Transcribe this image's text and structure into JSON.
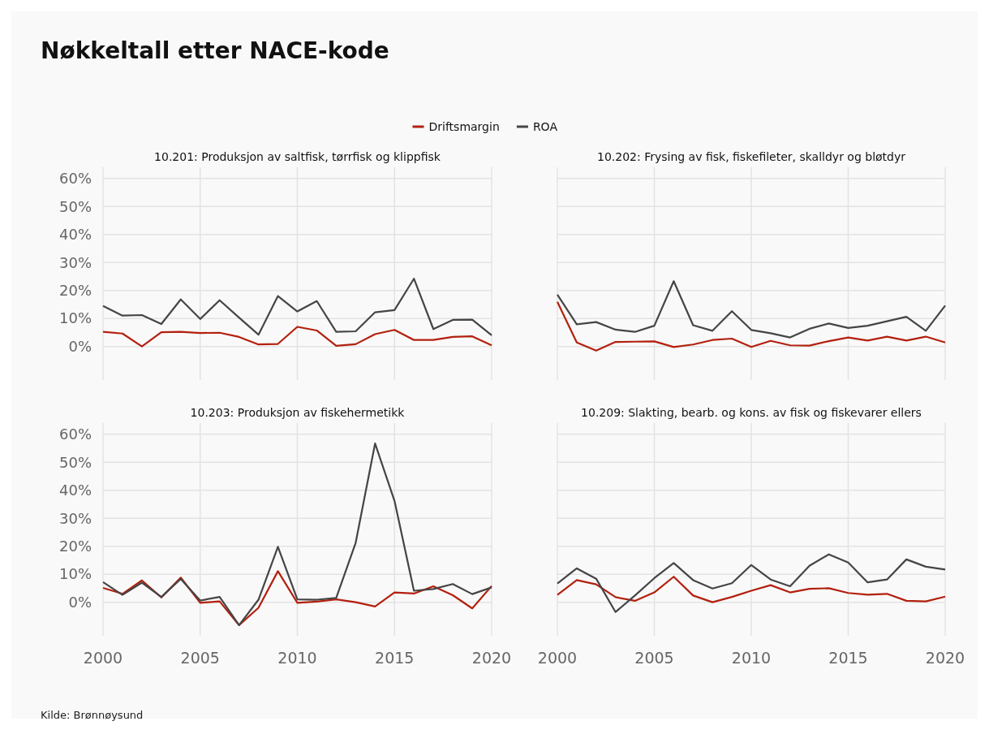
{
  "chart_data": [
    {
      "type": "line",
      "title": "Nøkkeltall etter NACE-kode",
      "subtitle": "10.201: Produksjon av saltfisk, tørrfisk og klippfisk",
      "x": [
        2000,
        2001,
        2002,
        2003,
        2004,
        2005,
        2006,
        2007,
        2008,
        2009,
        2010,
        2011,
        2012,
        2013,
        2014,
        2015,
        2016,
        2017,
        2018,
        2019,
        2020
      ],
      "xlim": [
        2000,
        2020
      ],
      "xticks": [
        {
          "value": 2000,
          "label": null
        },
        {
          "value": 2005,
          "label": null
        },
        {
          "value": 2010,
          "label": null
        },
        {
          "value": 2015,
          "label": null
        },
        {
          "value": 2020,
          "label": null
        }
      ],
      "ylim": [
        -12,
        64
      ],
      "yticks": [
        {
          "value": 0,
          "label": "0%"
        },
        {
          "value": 10,
          "label": "10%"
        },
        {
          "value": 20,
          "label": "20%"
        },
        {
          "value": 30,
          "label": "30%"
        },
        {
          "value": 40,
          "label": "40%"
        },
        {
          "value": 50,
          "label": "50%"
        },
        {
          "value": 60,
          "label": "60%"
        }
      ],
      "grid": true,
      "legend": "top",
      "tick_labels": "y",
      "series": [
        {
          "name": "Driftsmargin",
          "color": "#b3200e",
          "values": [
            5.2,
            4.6,
            0,
            5.1,
            5.2,
            4.8,
            4.9,
            3.4,
            0.7,
            0.9,
            7.0,
            5.7,
            0.2,
            0.8,
            4.4,
            5.9,
            2.3,
            2.3,
            3.4,
            3.6,
            0.4
          ]
        },
        {
          "name": "ROA",
          "color": "#454545",
          "values": [
            14.5,
            11,
            11.2,
            8,
            16.8,
            9.8,
            16.5,
            10.3,
            4.2,
            18,
            12.5,
            16.2,
            5.2,
            5.4,
            12.2,
            13,
            24.2,
            6.2,
            9.5,
            9.6,
            4
          ]
        }
      ]
    },
    {
      "type": "line",
      "subtitle": "10.202: Frysing av fisk, fiskefileter, skalldyr og bløtdyr",
      "x": [
        2000,
        2001,
        2002,
        2003,
        2004,
        2005,
        2006,
        2007,
        2008,
        2009,
        2010,
        2011,
        2012,
        2013,
        2014,
        2015,
        2016,
        2017,
        2018,
        2019,
        2020
      ],
      "xlim": [
        2000,
        2020
      ],
      "xticks": [
        {
          "value": 2000,
          "label": null
        },
        {
          "value": 2005,
          "label": null
        },
        {
          "value": 2010,
          "label": null
        },
        {
          "value": 2015,
          "label": null
        },
        {
          "value": 2020,
          "label": null
        }
      ],
      "ylim": [
        -12,
        64
      ],
      "yticks": [
        {
          "value": 0,
          "label": null
        },
        {
          "value": 10,
          "label": null
        },
        {
          "value": 20,
          "label": null
        },
        {
          "value": 30,
          "label": null
        },
        {
          "value": 40,
          "label": null
        },
        {
          "value": 50,
          "label": null
        },
        {
          "value": 60,
          "label": null
        }
      ],
      "grid": true,
      "tick_labels": false,
      "series": [
        {
          "color": "#b3200e",
          "values": [
            15.9,
            1.4,
            -1.5,
            1.6,
            1.7,
            1.8,
            -0.2,
            0.7,
            2.3,
            2.8,
            -0.2,
            2,
            0.4,
            0.3,
            1.9,
            3.2,
            2.1,
            3.5,
            2.1,
            3.5,
            1.4
          ]
        },
        {
          "color": "#454545",
          "values": [
            18.5,
            7.9,
            8.7,
            6,
            5.2,
            7.4,
            23.3,
            7.6,
            5.6,
            12.6,
            5.9,
            4.7,
            3.2,
            6.3,
            8.2,
            6.6,
            7.4,
            9,
            10.6,
            5.6,
            14.6
          ]
        }
      ]
    },
    {
      "type": "line",
      "subtitle": "10.203: Produksjon av fiskehermetikk",
      "x": [
        2000,
        2001,
        2002,
        2003,
        2004,
        2005,
        2006,
        2007,
        2008,
        2009,
        2010,
        2011,
        2012,
        2013,
        2014,
        2015,
        2016,
        2017,
        2018,
        2019,
        2020
      ],
      "xlim": [
        2000,
        2020
      ],
      "xticks": [
        2000,
        2005,
        2010,
        2015,
        2020
      ],
      "ylim": [
        -12,
        64
      ],
      "yticks": [
        {
          "value": 0,
          "label": "0%"
        },
        {
          "value": 10,
          "label": "10%"
        },
        {
          "value": 20,
          "label": "20%"
        },
        {
          "value": 30,
          "label": "30%"
        },
        {
          "value": 40,
          "label": "40%"
        },
        {
          "value": 50,
          "label": "50%"
        },
        {
          "value": 60,
          "label": "60%"
        }
      ],
      "grid": true,
      "annotations": [
        "Kilde: Brønnøysund"
      ],
      "series": [
        {
          "color": "#b3200e",
          "values": [
            5.1,
            3,
            7.8,
            1.7,
            8.8,
            -0.2,
            0.3,
            -8.2,
            -2,
            11.1,
            -0.2,
            0.2,
            1,
            0,
            -1.5,
            3.5,
            3.1,
            5.7,
            2.5,
            -2.2,
            5.8
          ]
        },
        {
          "color": "#454545",
          "values": [
            7.2,
            2.6,
            7,
            1.9,
            8.3,
            0.6,
            1.9,
            -8.2,
            0.9,
            19.8,
            1,
            0.9,
            1.5,
            21.2,
            56.7,
            36.2,
            4.1,
            4.7,
            6.5,
            2.9,
            5.3
          ]
        }
      ]
    },
    {
      "type": "line",
      "subtitle": "10.209: Slakting, bearb. og kons. av fisk og fiskevarer ellers",
      "x": [
        2000,
        2001,
        2002,
        2003,
        2004,
        2005,
        2006,
        2007,
        2008,
        2009,
        2010,
        2011,
        2012,
        2013,
        2014,
        2015,
        2016,
        2017,
        2018,
        2019,
        2020
      ],
      "xlim": [
        2000,
        2020
      ],
      "xticks": [
        2000,
        2005,
        2010,
        2015,
        2020
      ],
      "ylim": [
        -12,
        64
      ],
      "yticks": [
        {
          "value": 0,
          "label": null
        },
        {
          "value": 10,
          "label": null
        },
        {
          "value": 20,
          "label": null
        },
        {
          "value": 30,
          "label": null
        },
        {
          "value": 40,
          "label": null
        },
        {
          "value": 50,
          "label": null
        },
        {
          "value": 60,
          "label": null
        }
      ],
      "grid": true,
      "tick_labels": "x",
      "series": [
        {
          "color": "#b3200e",
          "values": [
            2.6,
            7.9,
            6.4,
            1.8,
            0.5,
            3.5,
            9.1,
            2.4,
            0,
            1.9,
            4.1,
            6.1,
            3.5,
            4.8,
            5,
            3.3,
            2.7,
            3,
            0.5,
            0.3,
            2
          ]
        },
        {
          "color": "#454545",
          "values": [
            6.7,
            12.1,
            8.4,
            -3.5,
            2.4,
            8.6,
            14,
            7.9,
            4.9,
            6.8,
            13.3,
            8.1,
            5.7,
            13,
            17.1,
            14.2,
            7.1,
            8.1,
            15.3,
            12.7,
            11.7
          ]
        }
      ]
    }
  ]
}
